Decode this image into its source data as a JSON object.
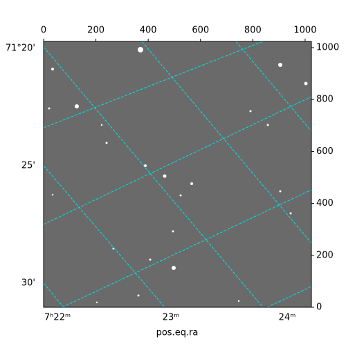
{
  "chart_data": {
    "type": "image",
    "xlim": [
      0,
      1024
    ],
    "ylim": [
      0,
      1024
    ],
    "xticks": [
      0,
      200,
      400,
      600,
      800,
      1000
    ],
    "yticks": [
      0,
      200,
      400,
      600,
      800,
      1000
    ],
    "ra_labels": [
      "7ʰ22ᵐ",
      "23ᵐ",
      "24ᵐ"
    ],
    "dec_labels": [
      "71°20'",
      "25'",
      "30'"
    ],
    "xlabel": "pos.eq.ra",
    "grid_color": "#00e5e5"
  }
}
